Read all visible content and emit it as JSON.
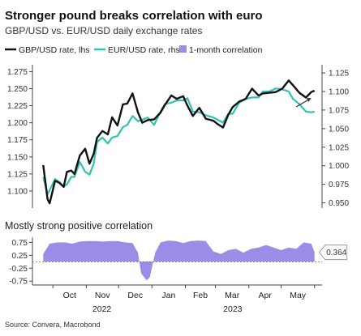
{
  "title": "Stronger pound breaks correlation with euro",
  "subtitle": "GBP/USD vs. EUR/USD daily exchange rates",
  "source": "Source: Convera, Macrobond",
  "colors": {
    "gbp": "#111111",
    "eur": "#2ec4b0",
    "corr": "#9b8ce8",
    "arrow": "#333333"
  },
  "chart_data": [
    {
      "type": "line",
      "legend": [
        "GBP/USD rate, lhs",
        "EUR/USD rate, rhs"
      ],
      "x_months": [
        "Oct",
        "Nov",
        "Dec",
        "Jan",
        "Feb",
        "Mar",
        "Apr",
        "May"
      ],
      "x_years": [
        "2022",
        "2023"
      ],
      "x": [
        "2022-09-22",
        "2022-09-26",
        "2022-09-28",
        "2022-10-03",
        "2022-10-07",
        "2022-10-11",
        "2022-10-14",
        "2022-10-18",
        "2022-10-21",
        "2022-10-26",
        "2022-10-31",
        "2022-11-04",
        "2022-11-08",
        "2022-11-11",
        "2022-11-16",
        "2022-11-21",
        "2022-11-25",
        "2022-11-30",
        "2022-12-05",
        "2022-12-09",
        "2022-12-14",
        "2022-12-19",
        "2022-12-23",
        "2022-12-28",
        "2023-01-03",
        "2023-01-09",
        "2023-01-13",
        "2023-01-19",
        "2023-01-24",
        "2023-01-30",
        "2023-02-03",
        "2023-02-08",
        "2023-02-14",
        "2023-02-20",
        "2023-02-27",
        "2023-03-03",
        "2023-03-08",
        "2023-03-13",
        "2023-03-17",
        "2023-03-23",
        "2023-03-29",
        "2023-04-04",
        "2023-04-10",
        "2023-04-14",
        "2023-04-20",
        "2023-04-26",
        "2023-05-02",
        "2023-05-08",
        "2023-05-12",
        "2023-05-18",
        "2023-05-24",
        "2023-05-29",
        "2023-06-01"
      ],
      "gbp": [
        1.138,
        1.088,
        1.082,
        1.115,
        1.112,
        1.106,
        1.128,
        1.13,
        1.125,
        1.152,
        1.162,
        1.14,
        1.155,
        1.178,
        1.188,
        1.183,
        1.208,
        1.196,
        1.227,
        1.228,
        1.243,
        1.215,
        1.2,
        1.204,
        1.205,
        1.215,
        1.226,
        1.24,
        1.235,
        1.239,
        1.225,
        1.21,
        1.222,
        1.206,
        1.203,
        1.198,
        1.193,
        1.212,
        1.223,
        1.231,
        1.235,
        1.25,
        1.24,
        1.243,
        1.244,
        1.245,
        1.25,
        1.262,
        1.255,
        1.244,
        1.237,
        1.245,
        1.247
      ],
      "eur": [
        0.985,
        0.962,
        0.967,
        0.982,
        0.978,
        0.972,
        0.975,
        0.985,
        0.985,
        1.005,
        0.992,
        0.988,
        1.003,
        1.032,
        1.038,
        1.03,
        1.038,
        1.04,
        1.052,
        1.055,
        1.067,
        1.06,
        1.062,
        1.065,
        1.055,
        1.073,
        1.083,
        1.085,
        1.088,
        1.088,
        1.091,
        1.073,
        1.072,
        1.068,
        1.065,
        1.062,
        1.058,
        1.07,
        1.07,
        1.085,
        1.09,
        1.092,
        1.092,
        1.1,
        1.1,
        1.104,
        1.103,
        1.1,
        1.09,
        1.083,
        1.073,
        1.072,
        1.073
      ],
      "y_left": {
        "ticks": [
          1.1,
          1.125,
          1.15,
          1.175,
          1.2,
          1.225,
          1.25,
          1.275
        ],
        "tick_labels": [
          "1.100",
          "1.125",
          "1.150",
          "1.175",
          "1.200",
          "1.225",
          "1.250",
          "1.275"
        ],
        "range": [
          1.075,
          1.285
        ]
      },
      "y_right": {
        "ticks": [
          0.95,
          0.975,
          1.0,
          1.025,
          1.05,
          1.075,
          1.1,
          1.125
        ],
        "tick_labels": [
          "0.950",
          "0.975",
          "1.000",
          "1.025",
          "1.050",
          "1.075",
          "1.100",
          "1.125"
        ],
        "range": [
          0.943,
          1.136
        ]
      }
    },
    {
      "type": "area",
      "title": "Mostly strong positive correlation",
      "legend": [
        "1-month correlation"
      ],
      "x": [
        "2022-09-22",
        "2022-09-28",
        "2022-10-05",
        "2022-10-12",
        "2022-10-19",
        "2022-10-26",
        "2022-11-02",
        "2022-11-09",
        "2022-11-16",
        "2022-11-23",
        "2022-11-30",
        "2022-12-07",
        "2022-12-14",
        "2022-12-19",
        "2022-12-22",
        "2022-12-27",
        "2022-12-30",
        "2023-01-04",
        "2023-01-09",
        "2023-01-16",
        "2023-01-23",
        "2023-01-30",
        "2023-02-06",
        "2023-02-13",
        "2023-02-20",
        "2023-02-27",
        "2023-03-06",
        "2023-03-13",
        "2023-03-20",
        "2023-03-27",
        "2023-04-03",
        "2023-04-10",
        "2023-04-17",
        "2023-04-24",
        "2023-05-01",
        "2023-05-08",
        "2023-05-15",
        "2023-05-22",
        "2023-05-29",
        "2023-06-01"
      ],
      "values": [
        0.3,
        0.7,
        0.75,
        0.75,
        0.7,
        0.78,
        0.8,
        0.8,
        0.78,
        0.8,
        0.8,
        0.75,
        0.72,
        0.35,
        -0.45,
        -0.72,
        -0.6,
        0.35,
        0.75,
        0.82,
        0.8,
        0.72,
        0.8,
        0.82,
        0.8,
        0.4,
        0.3,
        0.45,
        0.5,
        0.35,
        0.5,
        0.55,
        0.65,
        0.55,
        0.45,
        0.55,
        0.5,
        0.75,
        0.7,
        0.364
      ],
      "y_ticks": [
        -0.75,
        -0.25,
        0.25,
        0.75
      ],
      "tick_labels": [
        "-0.75",
        "-0.25",
        "0.25",
        "0.75"
      ],
      "range": [
        -0.9,
        0.95
      ],
      "latest_label": "0.364"
    }
  ]
}
